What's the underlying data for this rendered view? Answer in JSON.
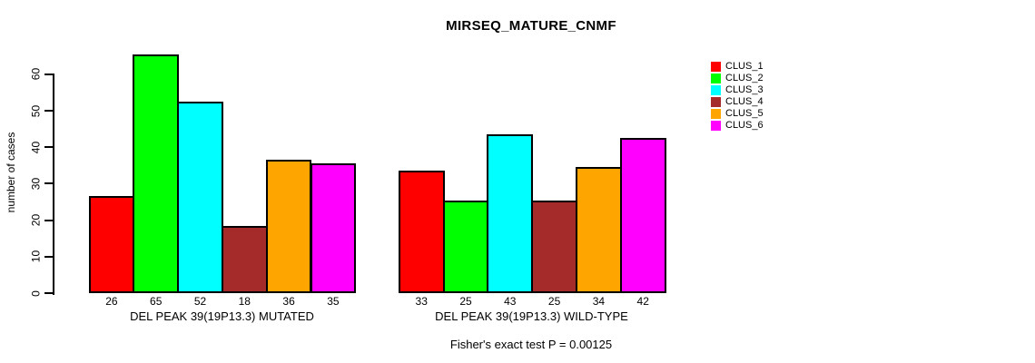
{
  "title": "MIRSEQ_MATURE_CNMF",
  "footer": "Fisher's exact test P = 0.00125",
  "chart_data": {
    "type": "bar",
    "title": "MIRSEQ_MATURE_CNMF",
    "xlabel": "",
    "ylabel": "number of cases",
    "yticks": [
      0,
      10,
      20,
      30,
      40,
      50,
      60
    ],
    "ylim": [
      0,
      65
    ],
    "grid": false,
    "legend_position": "right",
    "bar_value_labels_shown": true,
    "categories": [
      "DEL PEAK 39(19P13.3) MUTATED",
      "DEL PEAK 39(19P13.3) WILD-TYPE"
    ],
    "series": [
      {
        "name": "CLUS_1",
        "color": "#FF0000",
        "values": [
          26,
          33
        ]
      },
      {
        "name": "CLUS_2",
        "color": "#00FF00",
        "values": [
          65,
          25
        ]
      },
      {
        "name": "CLUS_3",
        "color": "#00FFFF",
        "values": [
          52,
          43
        ]
      },
      {
        "name": "CLUS_4",
        "color": "#A52A2A",
        "values": [
          18,
          25
        ]
      },
      {
        "name": "CLUS_5",
        "color": "#FFA500",
        "values": [
          36,
          34
        ]
      },
      {
        "name": "CLUS_6",
        "color": "#FF00FF",
        "values": [
          35,
          42
        ]
      }
    ],
    "annotation": "Fisher's exact test P = 0.00125"
  }
}
